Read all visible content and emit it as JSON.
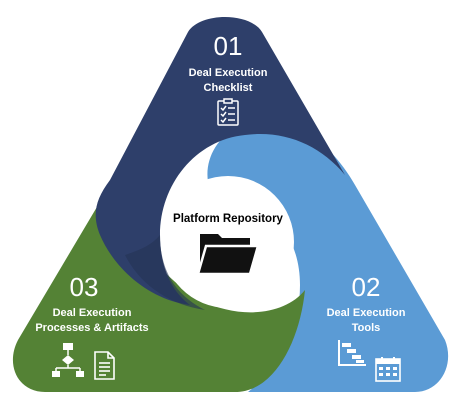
{
  "title": "",
  "colors": {
    "segment_01": "#2e3f6a",
    "segment_02": "#5b9bd5",
    "segment_03": "#548235",
    "center": "#ffffff",
    "text_light": "#ffffff",
    "text_dark": "#000000"
  },
  "center": {
    "label": "Platform Repository",
    "icon": "folder-icon"
  },
  "segments": [
    {
      "number": "01",
      "label_line1": "Deal Execution",
      "label_line2": "Checklist",
      "icons": [
        "checklist-icon"
      ]
    },
    {
      "number": "02",
      "label_line1": "Deal Execution",
      "label_line2": "Tools",
      "icons": [
        "gantt-chart-icon",
        "calendar-icon"
      ]
    },
    {
      "number": "03",
      "label_line1": "Deal Execution",
      "label_line2": "Processes & Artifacts",
      "icons": [
        "flowchart-icon",
        "document-icon"
      ]
    }
  ]
}
